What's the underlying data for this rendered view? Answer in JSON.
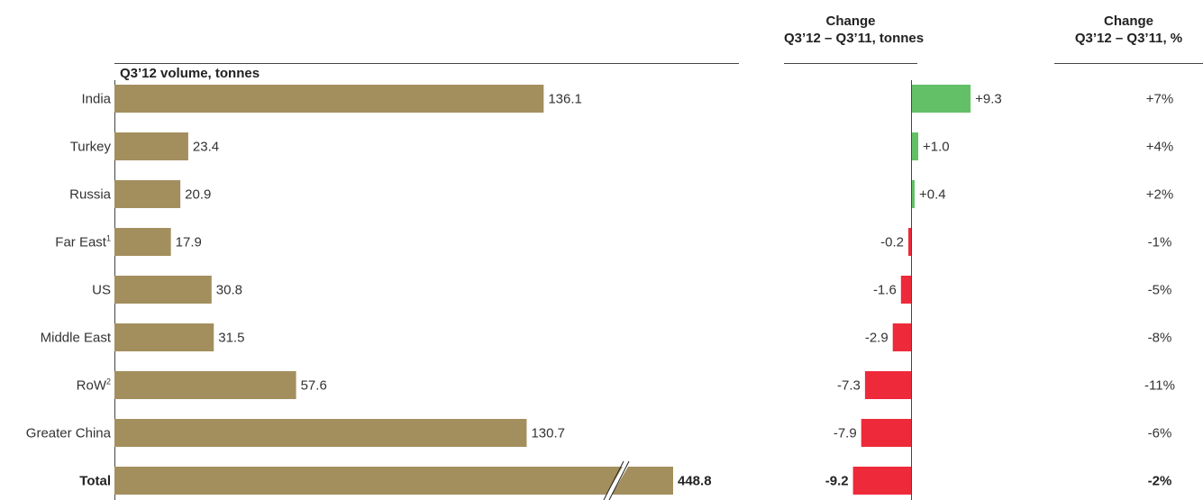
{
  "headers": {
    "volume": "Q3’12 volume, tonnes",
    "change_line1": "Change",
    "change_line2": "Q3’12 – Q3’11, tonnes",
    "pct_line1": "Change",
    "pct_line2": "Q3’12 – Q3’11, %"
  },
  "colors": {
    "volume_bar": "#A38F5E",
    "positive": "#63C066",
    "negative": "#EE2A3A"
  },
  "chart_data": {
    "type": "bar",
    "categories": [
      "India",
      "Turkey",
      "Russia",
      "Far East",
      "US",
      "Middle East",
      "RoW",
      "Greater China",
      "Total"
    ],
    "category_footnotes": [
      "",
      "",
      "",
      "1",
      "",
      "",
      "2",
      "",
      ""
    ],
    "series": [
      {
        "values": [
          136.1,
          23.4,
          20.9,
          17.9,
          30.8,
          31.5,
          57.6,
          130.7,
          448.8
        ],
        "labels": [
          "136.1",
          "23.4",
          "20.9",
          "17.9",
          "30.8",
          "31.5",
          "57.6",
          "130.7",
          "448.8"
        ]
      },
      {
        "values": [
          9.3,
          1.0,
          0.4,
          -0.2,
          -1.6,
          -2.9,
          -7.3,
          -7.9,
          -9.2
        ],
        "labels": [
          "+9.3",
          "+1.0",
          "+0.4",
          "-0.2",
          "-1.6",
          "-2.9",
          "-7.3",
          "-7.9",
          "-9.2"
        ]
      },
      {
        "values": [
          7,
          4,
          2,
          -1,
          -5,
          -8,
          -11,
          -6,
          -2
        ],
        "labels": [
          "+7%",
          "+4%",
          "+2%",
          "-1%",
          "-5%",
          "-8%",
          "-11%",
          "-6%",
          "-2%"
        ]
      }
    ],
    "axis_break_on": "Total",
    "bold_category": "Total"
  }
}
